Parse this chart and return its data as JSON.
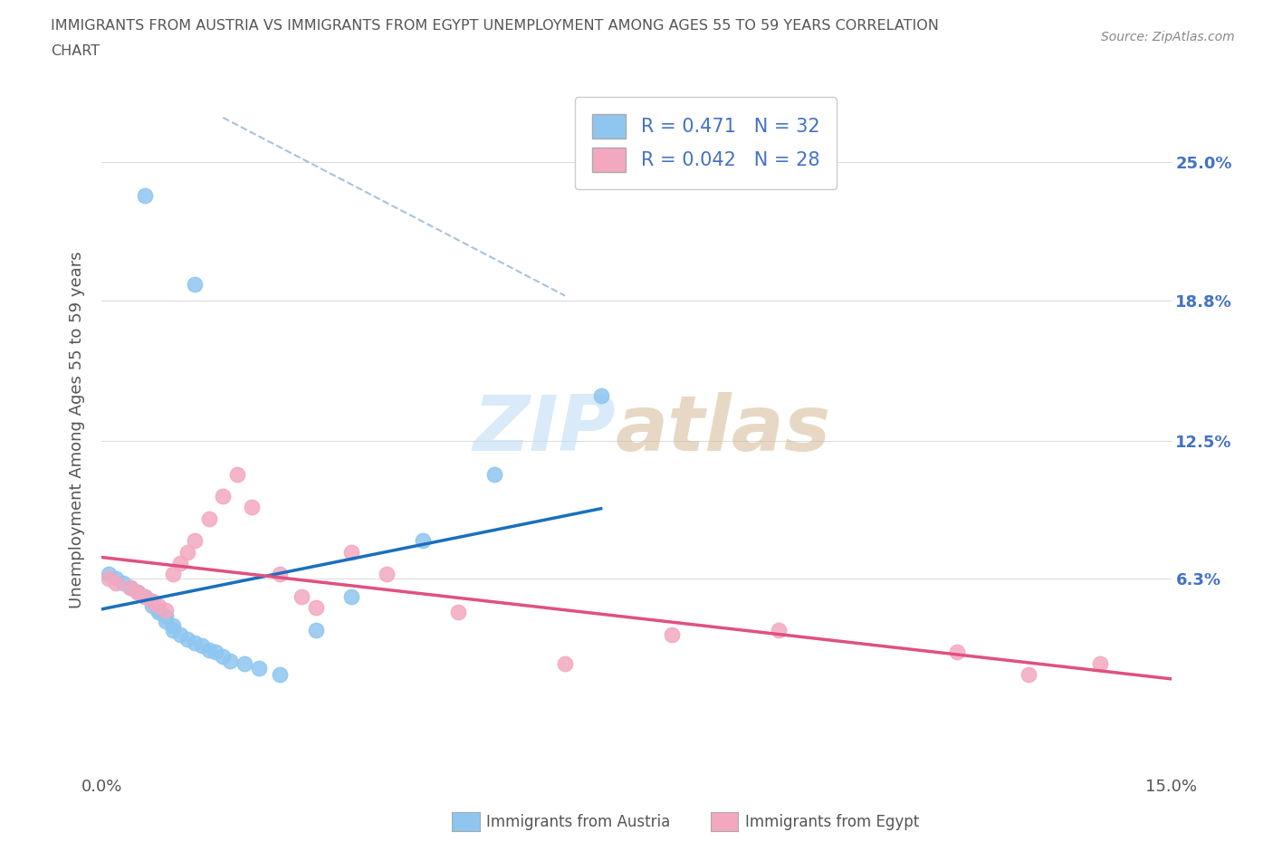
{
  "title_line1": "IMMIGRANTS FROM AUSTRIA VS IMMIGRANTS FROM EGYPT UNEMPLOYMENT AMONG AGES 55 TO 59 YEARS CORRELATION",
  "title_line2": "CHART",
  "source_text": "Source: ZipAtlas.com",
  "ylabel": "Unemployment Among Ages 55 to 59 years",
  "xlim": [
    0.0,
    0.15
  ],
  "ylim": [
    -0.025,
    0.285
  ],
  "ytick_positions": [
    0.063,
    0.125,
    0.188,
    0.25
  ],
  "ytick_labels": [
    "6.3%",
    "12.5%",
    "18.8%",
    "25.0%"
  ],
  "xtick_positions": [
    0.0,
    0.05,
    0.1,
    0.15
  ],
  "xticklabels": [
    "0.0%",
    "",
    "",
    "15.0%"
  ],
  "austria_R": "0.471",
  "austria_N": "32",
  "egypt_R": "0.042",
  "egypt_N": "28",
  "austria_scatter_color": "#8ec6f0",
  "egypt_scatter_color": "#f4a8c0",
  "austria_line_color": "#1a6fbd",
  "egypt_line_color": "#e05080",
  "dash_line_color": "#a0bcd8",
  "legend_label_austria": "Immigrants from Austria",
  "legend_label_egypt": "Immigrants from Egypt",
  "legend_text_color": "#4472c4",
  "background_color": "#ffffff",
  "grid_color": "#dddddd",
  "title_color": "#555555",
  "source_color": "#888888",
  "right_ytick_color": "#4472c4",
  "ylabel_color": "#555555",
  "austria_x": [
    0.006,
    0.013,
    0.001,
    0.002,
    0.003,
    0.004,
    0.005,
    0.006,
    0.007,
    0.007,
    0.008,
    0.008,
    0.009,
    0.009,
    0.01,
    0.01,
    0.011,
    0.012,
    0.013,
    0.014,
    0.015,
    0.016,
    0.017,
    0.018,
    0.02,
    0.022,
    0.025,
    0.03,
    0.035,
    0.045,
    0.055,
    0.07
  ],
  "austria_y": [
    0.235,
    0.195,
    0.065,
    0.063,
    0.061,
    0.059,
    0.057,
    0.055,
    0.053,
    0.051,
    0.049,
    0.048,
    0.046,
    0.044,
    0.042,
    0.04,
    0.038,
    0.036,
    0.034,
    0.033,
    0.031,
    0.03,
    0.028,
    0.026,
    0.025,
    0.023,
    0.02,
    0.04,
    0.055,
    0.08,
    0.11,
    0.145
  ],
  "egypt_x": [
    0.001,
    0.002,
    0.004,
    0.005,
    0.006,
    0.007,
    0.008,
    0.009,
    0.01,
    0.011,
    0.012,
    0.013,
    0.015,
    0.017,
    0.019,
    0.021,
    0.025,
    0.028,
    0.03,
    0.035,
    0.04,
    0.05,
    0.065,
    0.08,
    0.095,
    0.12,
    0.13,
    0.14
  ],
  "egypt_y": [
    0.063,
    0.061,
    0.059,
    0.057,
    0.055,
    0.053,
    0.051,
    0.049,
    0.065,
    0.07,
    0.075,
    0.08,
    0.09,
    0.1,
    0.11,
    0.095,
    0.065,
    0.055,
    0.05,
    0.075,
    0.065,
    0.048,
    0.025,
    0.038,
    0.04,
    0.03,
    0.02,
    0.025
  ]
}
